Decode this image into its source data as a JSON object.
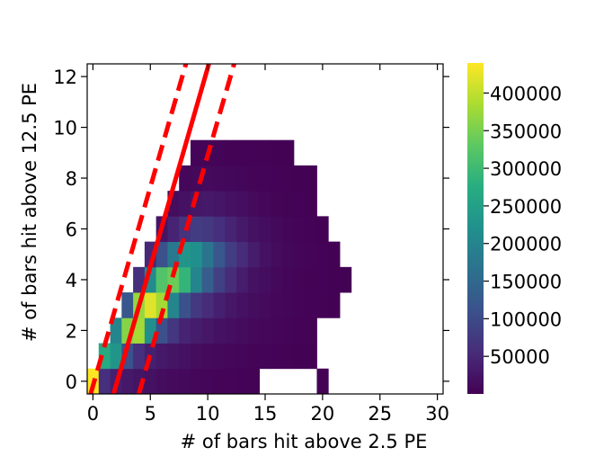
{
  "chart_data": {
    "type": "heatmap",
    "xlabel": "# of bars hit above 2.5 PE",
    "ylabel": "# of bars hit above 12.5 PE",
    "xlim": [
      -0.5,
      30.5
    ],
    "ylim": [
      -0.5,
      12.5
    ],
    "x_ticks": [
      0,
      5,
      10,
      15,
      20,
      25,
      30
    ],
    "y_ticks": [
      0,
      2,
      4,
      6,
      8,
      10,
      12
    ],
    "colormap": "viridis",
    "colorbar": {
      "min": 0,
      "max": 440000,
      "ticks": [
        50000,
        100000,
        150000,
        200000,
        250000,
        300000,
        350000,
        400000
      ],
      "tick_labels": [
        "50000",
        "100000",
        "150000",
        "200000",
        "250000",
        "300000",
        "350000",
        "400000"
      ]
    },
    "grid": false,
    "cells": [
      [
        -0.5,
        -0.5,
        1,
        1,
        440000
      ],
      [
        0.5,
        -0.5,
        1,
        1,
        60000
      ],
      [
        1.5,
        -0.5,
        1,
        1,
        40000
      ],
      [
        2.5,
        -0.5,
        1,
        1,
        30000
      ],
      [
        3.5,
        -0.5,
        1,
        1,
        25000
      ],
      [
        4.5,
        -0.5,
        1,
        1,
        20000
      ],
      [
        5.5,
        -0.5,
        1,
        1,
        15000
      ],
      [
        6.5,
        -0.5,
        1,
        1,
        12000
      ],
      [
        7.5,
        -0.5,
        1,
        1,
        10000
      ],
      [
        8.5,
        -0.5,
        1,
        1,
        8000
      ],
      [
        9.5,
        -0.5,
        1,
        1,
        6000
      ],
      [
        10.5,
        -0.5,
        1,
        1,
        5000
      ],
      [
        11.5,
        -0.5,
        1,
        1,
        4000
      ],
      [
        12.5,
        -0.5,
        1,
        1,
        3000
      ],
      [
        13.5,
        -0.5,
        1,
        1,
        2000
      ],
      [
        19.5,
        -0.5,
        1,
        1,
        1000
      ],
      [
        0.5,
        0.5,
        1,
        1,
        270000
      ],
      [
        1.5,
        0.5,
        1,
        1,
        230000
      ],
      [
        2.5,
        0.5,
        1,
        1,
        110000
      ],
      [
        3.5,
        0.5,
        1,
        1,
        60000
      ],
      [
        4.5,
        0.5,
        1,
        1,
        40000
      ],
      [
        5.5,
        0.5,
        1,
        1,
        30000
      ],
      [
        6.5,
        0.5,
        1,
        1,
        25000
      ],
      [
        7.5,
        0.5,
        1,
        1,
        20000
      ],
      [
        8.5,
        0.5,
        1,
        1,
        15000
      ],
      [
        9.5,
        0.5,
        1,
        1,
        12000
      ],
      [
        10.5,
        0.5,
        1,
        1,
        10000
      ],
      [
        11.5,
        0.5,
        1,
        1,
        8000
      ],
      [
        12.5,
        0.5,
        1,
        1,
        6000
      ],
      [
        13.5,
        0.5,
        1,
        1,
        5000
      ],
      [
        14.5,
        0.5,
        1,
        1,
        4000
      ],
      [
        15.5,
        0.5,
        1,
        1,
        3000
      ],
      [
        16.5,
        0.5,
        1,
        1,
        2000
      ],
      [
        17.5,
        0.5,
        1,
        1,
        1500
      ],
      [
        18.5,
        0.5,
        1,
        1,
        1000
      ],
      [
        1.5,
        1.5,
        1,
        1,
        200000
      ],
      [
        2.5,
        1.5,
        1,
        1,
        360000
      ],
      [
        3.5,
        1.5,
        1,
        1,
        380000
      ],
      [
        4.5,
        1.5,
        1,
        1,
        220000
      ],
      [
        5.5,
        1.5,
        1,
        1,
        110000
      ],
      [
        6.5,
        1.5,
        1,
        1,
        70000
      ],
      [
        7.5,
        1.5,
        1,
        1,
        45000
      ],
      [
        8.5,
        1.5,
        1,
        1,
        35000
      ],
      [
        9.5,
        1.5,
        1,
        1,
        28000
      ],
      [
        10.5,
        1.5,
        1,
        1,
        22000
      ],
      [
        11.5,
        1.5,
        1,
        1,
        17000
      ],
      [
        12.5,
        1.5,
        1,
        1,
        13000
      ],
      [
        13.5,
        1.5,
        1,
        1,
        10000
      ],
      [
        14.5,
        1.5,
        1,
        1,
        8000
      ],
      [
        15.5,
        1.5,
        1,
        1,
        6000
      ],
      [
        16.5,
        1.5,
        1,
        1,
        4000
      ],
      [
        17.5,
        1.5,
        1,
        1,
        3000
      ],
      [
        18.5,
        1.5,
        1,
        1,
        2000
      ],
      [
        2.5,
        2.5,
        1,
        1,
        120000
      ],
      [
        3.5,
        2.5,
        1,
        1,
        370000
      ],
      [
        4.5,
        2.5,
        1,
        1,
        420000
      ],
      [
        5.5,
        2.5,
        1,
        1,
        380000
      ],
      [
        6.5,
        2.5,
        1,
        1,
        200000
      ],
      [
        7.5,
        2.5,
        1,
        1,
        110000
      ],
      [
        8.5,
        2.5,
        1,
        1,
        75000
      ],
      [
        9.5,
        2.5,
        1,
        1,
        55000
      ],
      [
        10.5,
        2.5,
        1,
        1,
        40000
      ],
      [
        11.5,
        2.5,
        1,
        1,
        28000
      ],
      [
        12.5,
        2.5,
        1,
        1,
        20000
      ],
      [
        13.5,
        2.5,
        1,
        1,
        15000
      ],
      [
        14.5,
        2.5,
        1,
        1,
        11000
      ],
      [
        15.5,
        2.5,
        1,
        1,
        8000
      ],
      [
        16.5,
        2.5,
        1,
        1,
        6000
      ],
      [
        17.5,
        2.5,
        1,
        1,
        4000
      ],
      [
        18.5,
        2.5,
        1,
        1,
        3000
      ],
      [
        19.5,
        2.5,
        1,
        1,
        2000
      ],
      [
        20.5,
        2.5,
        1,
        1,
        1500
      ],
      [
        3.5,
        3.5,
        1,
        1,
        60000
      ],
      [
        4.5,
        3.5,
        1,
        1,
        210000
      ],
      [
        5.5,
        3.5,
        1,
        1,
        320000
      ],
      [
        6.5,
        3.5,
        1,
        1,
        340000
      ],
      [
        7.5,
        3.5,
        1,
        1,
        290000
      ],
      [
        8.5,
        3.5,
        1,
        1,
        200000
      ],
      [
        9.5,
        3.5,
        1,
        1,
        130000
      ],
      [
        10.5,
        3.5,
        1,
        1,
        85000
      ],
      [
        11.5,
        3.5,
        1,
        1,
        55000
      ],
      [
        12.5,
        3.5,
        1,
        1,
        35000
      ],
      [
        13.5,
        3.5,
        1,
        1,
        22000
      ],
      [
        14.5,
        3.5,
        1,
        1,
        15000
      ],
      [
        15.5,
        3.5,
        1,
        1,
        10000
      ],
      [
        16.5,
        3.5,
        1,
        1,
        7000
      ],
      [
        17.5,
        3.5,
        1,
        1,
        5000
      ],
      [
        18.5,
        3.5,
        1,
        1,
        3500
      ],
      [
        19.5,
        3.5,
        1,
        1,
        2500
      ],
      [
        20.5,
        3.5,
        1,
        1,
        1800
      ],
      [
        21.5,
        3.5,
        1,
        1,
        1200
      ],
      [
        4.5,
        4.5,
        1,
        1,
        50000
      ],
      [
        5.5,
        4.5,
        1,
        1,
        110000
      ],
      [
        6.5,
        4.5,
        1,
        1,
        180000
      ],
      [
        7.5,
        4.5,
        1,
        1,
        230000
      ],
      [
        8.5,
        4.5,
        1,
        1,
        220000
      ],
      [
        9.5,
        4.5,
        1,
        1,
        170000
      ],
      [
        10.5,
        4.5,
        1,
        1,
        120000
      ],
      [
        11.5,
        4.5,
        1,
        1,
        80000
      ],
      [
        12.5,
        4.5,
        1,
        1,
        55000
      ],
      [
        13.5,
        4.5,
        1,
        1,
        35000
      ],
      [
        14.5,
        4.5,
        1,
        1,
        22000
      ],
      [
        15.5,
        4.5,
        1,
        1,
        14000
      ],
      [
        16.5,
        4.5,
        1,
        1,
        9000
      ],
      [
        17.5,
        4.5,
        1,
        1,
        6000
      ],
      [
        18.5,
        4.5,
        1,
        1,
        4000
      ],
      [
        19.5,
        4.5,
        1,
        1,
        2500
      ],
      [
        20.5,
        4.5,
        1,
        1,
        1500
      ],
      [
        5.5,
        5.5,
        1,
        1,
        25000
      ],
      [
        6.5,
        5.5,
        1,
        1,
        45000
      ],
      [
        7.5,
        5.5,
        1,
        1,
        65000
      ],
      [
        8.5,
        5.5,
        1,
        1,
        80000
      ],
      [
        9.5,
        5.5,
        1,
        1,
        75000
      ],
      [
        10.5,
        5.5,
        1,
        1,
        60000
      ],
      [
        11.5,
        5.5,
        1,
        1,
        45000
      ],
      [
        12.5,
        5.5,
        1,
        1,
        32000
      ],
      [
        13.5,
        5.5,
        1,
        1,
        22000
      ],
      [
        14.5,
        5.5,
        1,
        1,
        15000
      ],
      [
        15.5,
        5.5,
        1,
        1,
        10000
      ],
      [
        16.5,
        5.5,
        1,
        1,
        6000
      ],
      [
        17.5,
        5.5,
        1,
        1,
        4000
      ],
      [
        18.5,
        5.5,
        1,
        1,
        2500
      ],
      [
        19.5,
        5.5,
        1,
        1,
        1500
      ],
      [
        6.5,
        6.5,
        1,
        1,
        15000
      ],
      [
        7.5,
        6.5,
        1,
        1,
        22000
      ],
      [
        8.5,
        6.5,
        1,
        1,
        28000
      ],
      [
        9.5,
        6.5,
        1,
        1,
        30000
      ],
      [
        10.5,
        6.5,
        1,
        1,
        27000
      ],
      [
        11.5,
        6.5,
        1,
        1,
        22000
      ],
      [
        12.5,
        6.5,
        1,
        1,
        17000
      ],
      [
        13.5,
        6.5,
        1,
        1,
        12000
      ],
      [
        14.5,
        6.5,
        1,
        1,
        8000
      ],
      [
        15.5,
        6.5,
        1,
        1,
        5000
      ],
      [
        16.5,
        6.5,
        1,
        1,
        3500
      ],
      [
        17.5,
        6.5,
        1,
        1,
        2500
      ],
      [
        18.5,
        6.5,
        1,
        1,
        1500
      ],
      [
        7.5,
        7.5,
        1,
        1,
        8000
      ],
      [
        8.5,
        7.5,
        1,
        1,
        10000
      ],
      [
        9.5,
        7.5,
        1,
        1,
        11000
      ],
      [
        10.5,
        7.5,
        1,
        1,
        10000
      ],
      [
        11.5,
        7.5,
        1,
        1,
        9000
      ],
      [
        12.5,
        7.5,
        1,
        1,
        7000
      ],
      [
        13.5,
        7.5,
        1,
        1,
        5000
      ],
      [
        14.5,
        7.5,
        1,
        1,
        4000
      ],
      [
        15.5,
        7.5,
        1,
        1,
        3000
      ],
      [
        16.5,
        7.5,
        1,
        1,
        2000
      ],
      [
        17.5,
        7.5,
        1,
        1,
        1500
      ],
      [
        18.5,
        7.5,
        1,
        1,
        1000
      ],
      [
        8.5,
        8.5,
        1,
        1,
        4000
      ],
      [
        9.5,
        8.5,
        1,
        1,
        4500
      ],
      [
        10.5,
        8.5,
        1,
        1,
        4000
      ],
      [
        11.5,
        8.5,
        1,
        1,
        3500
      ],
      [
        12.5,
        8.5,
        1,
        1,
        3000
      ],
      [
        13.5,
        8.5,
        1,
        1,
        2500
      ],
      [
        14.5,
        8.5,
        1,
        1,
        2000
      ],
      [
        15.5,
        8.5,
        1,
        1,
        1500
      ],
      [
        16.5,
        8.5,
        1,
        1,
        1000
      ]
    ],
    "lines": [
      {
        "style": "solid",
        "color": "#ff0000",
        "points": [
          [
            1.8,
            -0.5
          ],
          [
            10.1,
            12.5
          ]
        ]
      },
      {
        "style": "dashed",
        "color": "#ff0000",
        "points": [
          [
            -0.2,
            -0.5
          ],
          [
            8.1,
            12.5
          ]
        ]
      },
      {
        "style": "dashed",
        "color": "#ff0000",
        "points": [
          [
            4.0,
            -0.5
          ],
          [
            12.3,
            12.5
          ]
        ]
      }
    ]
  }
}
